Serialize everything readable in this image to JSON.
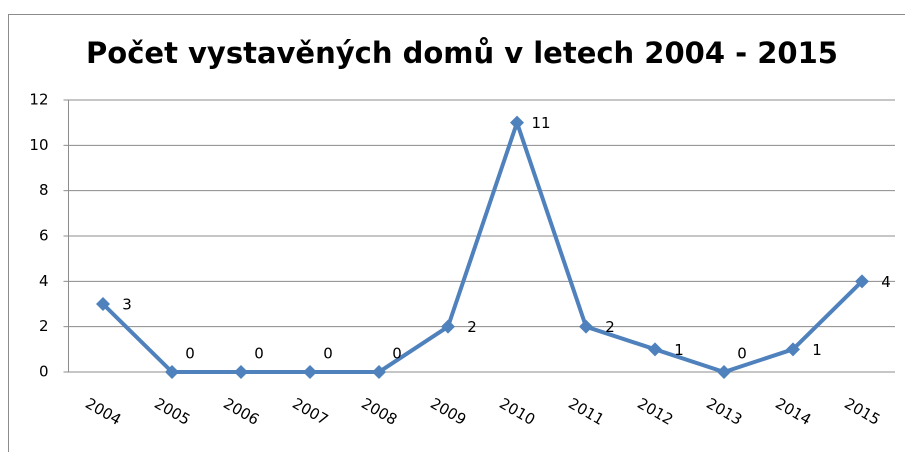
{
  "chart_data": {
    "type": "line",
    "title": "Počet vystavěných domů v letech 2004 - 2015",
    "categories": [
      "2004",
      "2005",
      "2006",
      "2007",
      "2008",
      "2009",
      "2010",
      "2011",
      "2012",
      "2013",
      "2014",
      "2015"
    ],
    "values": [
      3,
      0,
      0,
      0,
      0,
      2,
      11,
      2,
      1,
      0,
      1,
      4
    ],
    "color": "#4f81bd",
    "ylim": [
      0,
      12
    ],
    "yticks": [
      0,
      2,
      4,
      6,
      8,
      10,
      12
    ],
    "grid": true
  }
}
